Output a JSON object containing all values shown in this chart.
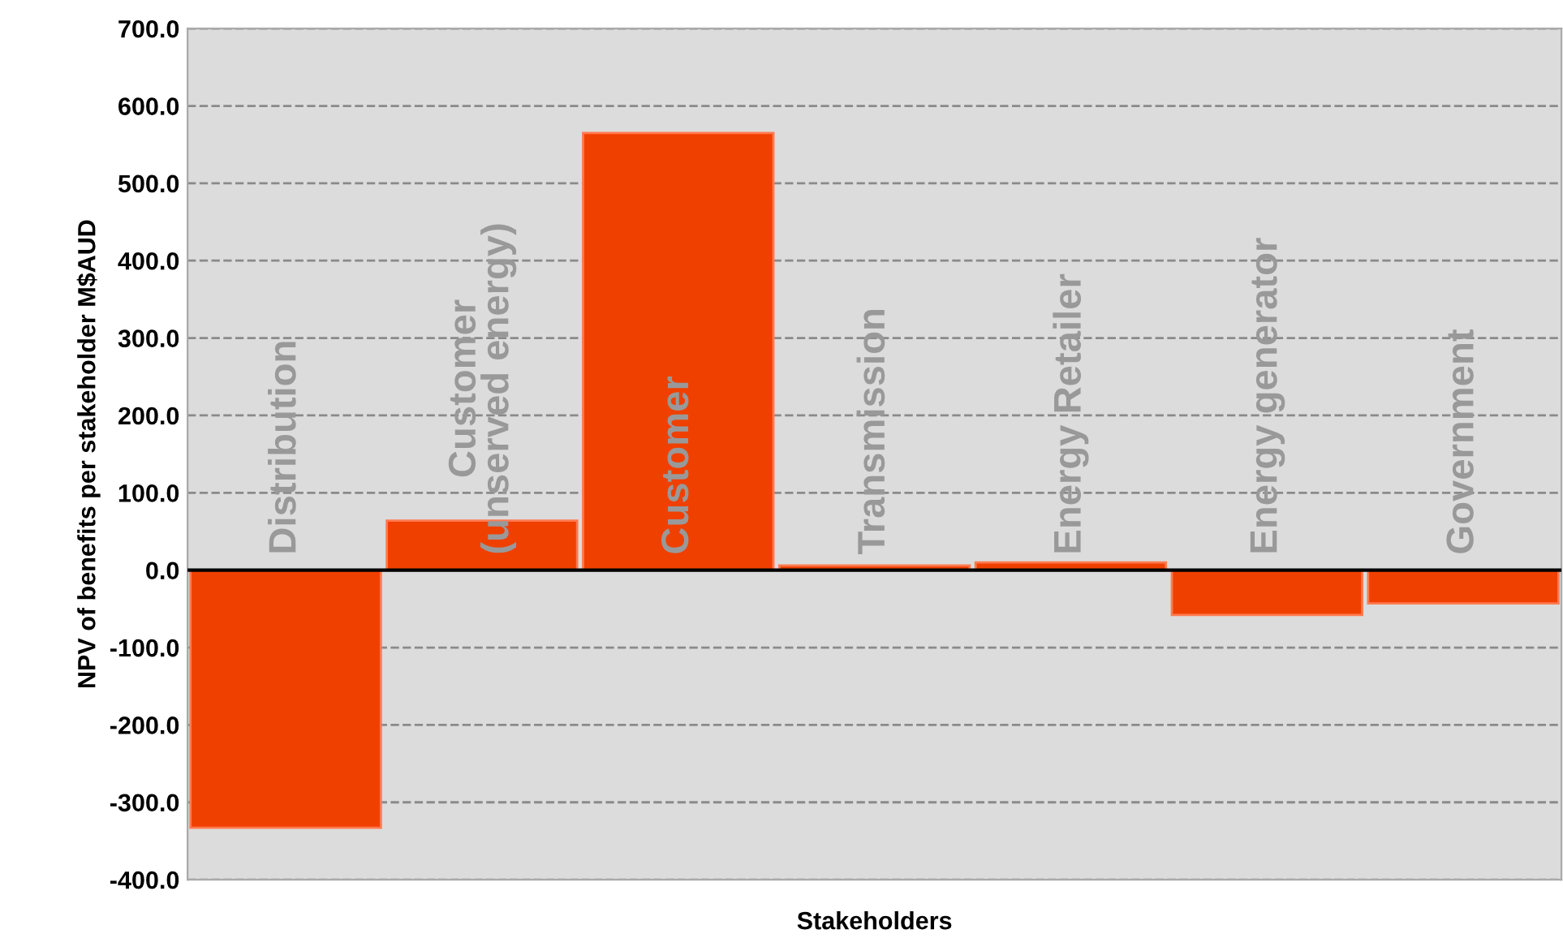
{
  "chart_data": {
    "type": "bar",
    "xlabel": "Stakeholders",
    "ylabel": "NPV of benefits per stakeholder M$AUD",
    "categories": [
      "Distribution",
      "Customer\n(unserved energy)",
      "Customer",
      "Transmission",
      "Energy Retailer",
      "Energy generator",
      "Government"
    ],
    "values": [
      -333,
      64,
      565,
      6,
      10,
      -58,
      -43
    ],
    "color": "#f04000",
    "ylim": [
      -400,
      700
    ],
    "yticks": [
      {
        "value": -400,
        "label": "-400.0"
      },
      {
        "value": -300,
        "label": "-300.0"
      },
      {
        "value": -200,
        "label": "-200.0"
      },
      {
        "value": -100,
        "label": "-100.0"
      },
      {
        "value": 0,
        "label": "0.0"
      },
      {
        "value": 100,
        "label": "100.0"
      },
      {
        "value": 200,
        "label": "200.0"
      },
      {
        "value": 300,
        "label": "300.0"
      },
      {
        "value": 400,
        "label": "400.0"
      },
      {
        "value": 500,
        "label": "500.0"
      },
      {
        "value": 600,
        "label": "600.0"
      },
      {
        "value": 700,
        "label": "700.0"
      }
    ],
    "grid": "y"
  }
}
